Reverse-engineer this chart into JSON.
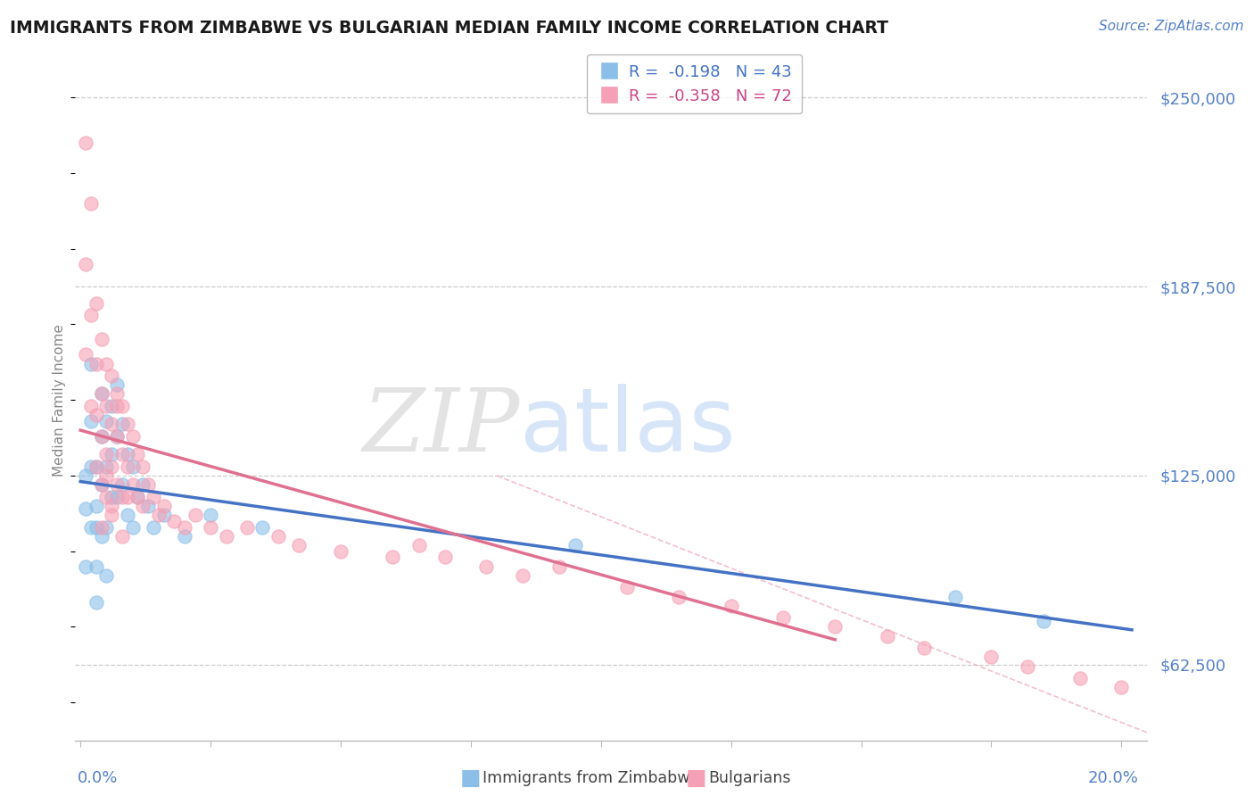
{
  "title": "IMMIGRANTS FROM ZIMBABWE VS BULGARIAN MEDIAN FAMILY INCOME CORRELATION CHART",
  "source": "Source: ZipAtlas.com",
  "ylabel": "Median Family Income",
  "legend_entries": [
    {
      "label_r": "R = ",
      "r_val": "-0.198",
      "label_n": "N = 43",
      "color": "#8bbfe8"
    },
    {
      "label_r": "R = ",
      "r_val": "-0.358",
      "label_n": "N = 72",
      "color": "#f5a0b5"
    }
  ],
  "color_blue": "#8bbfe8",
  "color_pink": "#f5a0b5",
  "color_blue_line": "#4472c4",
  "color_pink_line": "#e07090",
  "color_diag": "#f0b0c0",
  "color_title": "#1a1a1a",
  "color_source": "#5580c8",
  "color_ylabel": "#888888",
  "color_ytick": "#5580c8",
  "color_xtick": "#5580c8",
  "color_grid": "#cccccc",
  "background": "#ffffff",
  "ylim": [
    37500,
    262500
  ],
  "xlim": [
    -0.001,
    0.205
  ],
  "yticks": [
    62500,
    125000,
    187500,
    250000
  ],
  "ytick_labels": [
    "$62,500",
    "$125,000",
    "$187,500",
    "$250,000"
  ],
  "blue_x": [
    0.001,
    0.001,
    0.001,
    0.002,
    0.002,
    0.002,
    0.002,
    0.003,
    0.003,
    0.003,
    0.003,
    0.003,
    0.004,
    0.004,
    0.004,
    0.004,
    0.005,
    0.005,
    0.005,
    0.005,
    0.006,
    0.006,
    0.006,
    0.007,
    0.007,
    0.007,
    0.008,
    0.008,
    0.009,
    0.009,
    0.01,
    0.01,
    0.011,
    0.012,
    0.013,
    0.014,
    0.016,
    0.02,
    0.025,
    0.035,
    0.095,
    0.168,
    0.185
  ],
  "blue_y": [
    125000,
    114000,
    95000,
    143000,
    162000,
    128000,
    108000,
    115000,
    128000,
    108000,
    95000,
    83000,
    152000,
    138000,
    122000,
    105000,
    143000,
    128000,
    108000,
    92000,
    148000,
    132000,
    118000,
    155000,
    138000,
    118000,
    142000,
    122000,
    132000,
    112000,
    128000,
    108000,
    118000,
    122000,
    115000,
    108000,
    112000,
    105000,
    112000,
    108000,
    102000,
    85000,
    77000
  ],
  "pink_x": [
    0.001,
    0.001,
    0.001,
    0.002,
    0.002,
    0.002,
    0.003,
    0.003,
    0.003,
    0.003,
    0.004,
    0.004,
    0.004,
    0.004,
    0.005,
    0.005,
    0.005,
    0.005,
    0.006,
    0.006,
    0.006,
    0.006,
    0.007,
    0.007,
    0.007,
    0.008,
    0.008,
    0.008,
    0.009,
    0.009,
    0.01,
    0.01,
    0.011,
    0.011,
    0.012,
    0.012,
    0.013,
    0.014,
    0.015,
    0.016,
    0.018,
    0.02,
    0.022,
    0.025,
    0.028,
    0.032,
    0.038,
    0.042,
    0.05,
    0.06,
    0.065,
    0.07,
    0.078,
    0.085,
    0.092,
    0.105,
    0.115,
    0.125,
    0.135,
    0.145,
    0.155,
    0.162,
    0.175,
    0.182,
    0.192,
    0.2,
    0.004,
    0.005,
    0.006,
    0.007,
    0.008,
    0.009
  ],
  "pink_y": [
    235000,
    195000,
    165000,
    215000,
    178000,
    148000,
    182000,
    162000,
    145000,
    128000,
    170000,
    152000,
    138000,
    122000,
    162000,
    148000,
    132000,
    118000,
    158000,
    142000,
    128000,
    112000,
    152000,
    138000,
    122000,
    148000,
    132000,
    118000,
    142000,
    128000,
    138000,
    122000,
    132000,
    118000,
    128000,
    115000,
    122000,
    118000,
    112000,
    115000,
    110000,
    108000,
    112000,
    108000,
    105000,
    108000,
    105000,
    102000,
    100000,
    98000,
    102000,
    98000,
    95000,
    92000,
    95000,
    88000,
    85000,
    82000,
    78000,
    75000,
    72000,
    68000,
    65000,
    62000,
    58000,
    55000,
    108000,
    125000,
    115000,
    148000,
    105000,
    118000
  ]
}
